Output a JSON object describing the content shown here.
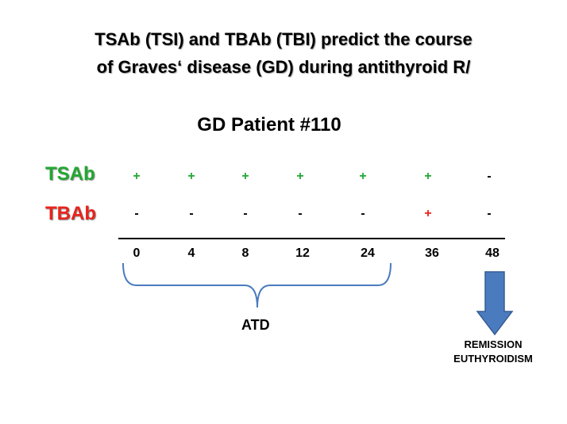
{
  "title": {
    "line1": "TSAb (TSI) and TBAb (TBI) predict the course",
    "line2": "of Graves‘ disease (GD) during antithyroid R/"
  },
  "subtitle": "GD Patient #110",
  "rows": {
    "tsab": {
      "label": "TSAb",
      "color": "#22a831",
      "marks": [
        "+",
        "+",
        "+",
        "+",
        "+",
        "+",
        "-"
      ],
      "mark_colors": [
        "#22a831",
        "#22a831",
        "#22a831",
        "#22a831",
        "#22a831",
        "#22a831",
        "#000000"
      ]
    },
    "tbab": {
      "label": "TBAb",
      "color": "#e8231c",
      "marks": [
        "-",
        "-",
        "-",
        "-",
        "-",
        "+",
        "-"
      ],
      "mark_colors": [
        "#000000",
        "#000000",
        "#000000",
        "#000000",
        "#000000",
        "#e8231c",
        "#000000"
      ]
    }
  },
  "timeline": {
    "ticks": [
      "0",
      "4",
      "8",
      "12",
      "24",
      "36",
      "48"
    ]
  },
  "brace": {
    "label": "ATD"
  },
  "outcome": {
    "line1": "REMISSION",
    "line2": "EUTHYROIDISM",
    "arrow_color": "#4a7bbf",
    "arrow_stroke": "#375d92"
  },
  "colors": {
    "brace": "#4a7bbf"
  }
}
